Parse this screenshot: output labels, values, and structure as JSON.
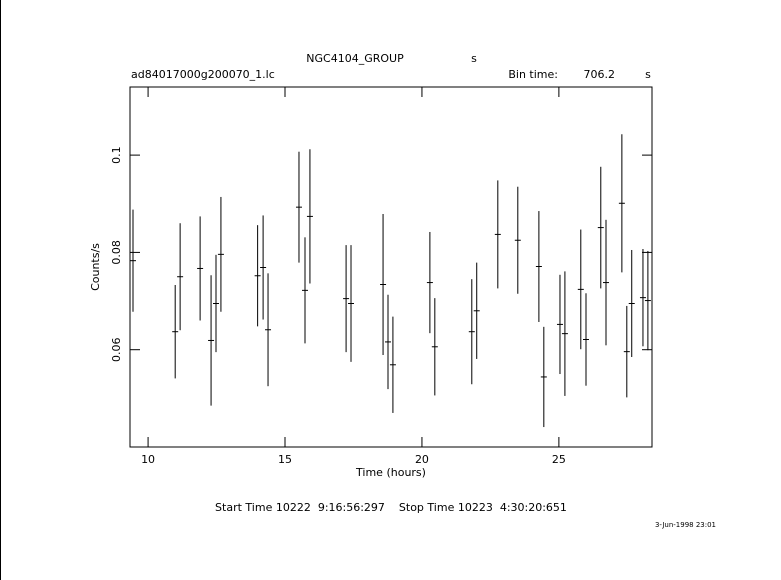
{
  "chart_data": {
    "type": "errorbar",
    "title": "NGC4104_GROUP",
    "title_unit": "s",
    "subtitle": "ad84017000g200070_1.lc",
    "bin_time_label": "Bin time:",
    "bin_time": 706.2,
    "bin_time_unit": "s",
    "x_label": "Time (hours)",
    "y_label": "Counts/s",
    "footer": "Start Time 10222  9:16:56:297    Stop Time 10223  4:30:20:651",
    "date_stamp": "3-Jun-1998 23:01",
    "color": "#000000",
    "xlim": [
      9.34,
      28.4
    ],
    "ylim": [
      0.04,
      0.114
    ],
    "xticks": [
      10,
      15,
      20,
      25
    ],
    "yticks": [
      0.06,
      0.08,
      0.1
    ],
    "x": [
      9.45,
      10.99,
      11.17,
      11.9,
      12.3,
      12.48,
      12.66,
      14.0,
      14.2,
      14.38,
      15.51,
      15.73,
      15.91,
      17.23,
      17.41,
      18.58,
      18.76,
      18.94,
      20.29,
      20.47,
      21.82,
      22.0,
      22.77,
      23.5,
      24.27,
      24.45,
      25.04,
      25.22,
      25.8,
      25.99,
      26.53,
      26.72,
      27.3,
      27.48,
      27.66,
      28.07,
      28.25
    ],
    "values": [
      0.0783,
      0.0637,
      0.075,
      0.0767,
      0.0619,
      0.0695,
      0.0796,
      0.0752,
      0.0769,
      0.0641,
      0.0893,
      0.0722,
      0.0874,
      0.0705,
      0.0695,
      0.0734,
      0.0616,
      0.0569,
      0.0738,
      0.0606,
      0.0637,
      0.068,
      0.0837,
      0.0825,
      0.0771,
      0.0544,
      0.0652,
      0.0633,
      0.0724,
      0.0621,
      0.0851,
      0.0738,
      0.0901,
      0.0596,
      0.0695,
      0.0707,
      0.0701
    ],
    "errors": [
      0.0105,
      0.0096,
      0.011,
      0.0107,
      0.0134,
      0.01,
      0.0118,
      0.0104,
      0.0107,
      0.0116,
      0.0114,
      0.0109,
      0.0138,
      0.011,
      0.012,
      0.0145,
      0.0097,
      0.0099,
      0.0104,
      0.01,
      0.0108,
      0.0099,
      0.0111,
      0.011,
      0.0114,
      0.0103,
      0.0102,
      0.0128,
      0.0123,
      0.0095,
      0.0125,
      0.0129,
      0.0142,
      0.0094,
      0.011,
      0.01,
      0.0102
    ]
  }
}
